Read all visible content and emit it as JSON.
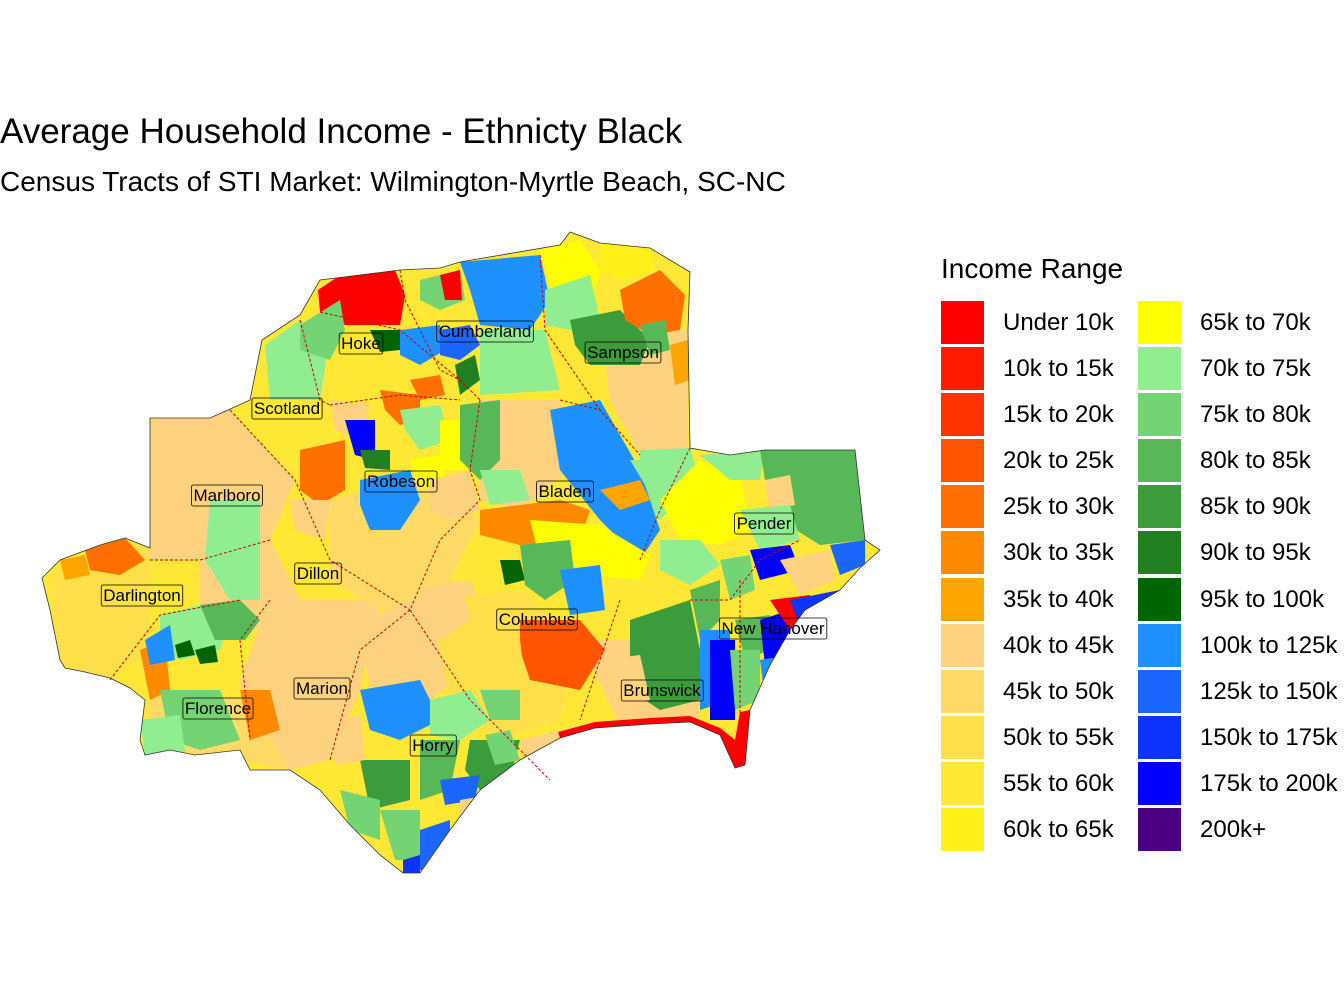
{
  "title": "Average Household Income - Ethnicty Black",
  "subtitle": "Census Tracts of STI Market: Wilmington-Myrtle Beach, SC-NC",
  "legend": {
    "title": "Income Range",
    "items": [
      {
        "label": "Under 10k",
        "color": "#ff0000"
      },
      {
        "label": "10k to 15k",
        "color": "#ff1a00"
      },
      {
        "label": "15k to 20k",
        "color": "#ff3300"
      },
      {
        "label": "20k to 25k",
        "color": "#ff5500"
      },
      {
        "label": "25k to 30k",
        "color": "#ff7000"
      },
      {
        "label": "30k to 35k",
        "color": "#ff8a00"
      },
      {
        "label": "35k to 40k",
        "color": "#ffa500"
      },
      {
        "label": "40k to 45k",
        "color": "#ffd27f"
      },
      {
        "label": "45k to 50k",
        "color": "#ffda66"
      },
      {
        "label": "50k to 55k",
        "color": "#ffe04a"
      },
      {
        "label": "55k to 60k",
        "color": "#ffe835"
      },
      {
        "label": "60k to 65k",
        "color": "#fff01a"
      },
      {
        "label": "65k to 70k",
        "color": "#ffff00"
      },
      {
        "label": "70k to 75k",
        "color": "#90ee90"
      },
      {
        "label": "75k to 80k",
        "color": "#74d474"
      },
      {
        "label": "80k to 85k",
        "color": "#58b858"
      },
      {
        "label": "85k to 90k",
        "color": "#3c9c3c"
      },
      {
        "label": "90k to 95k",
        "color": "#208020"
      },
      {
        "label": "95k to 100k",
        "color": "#006400"
      },
      {
        "label": "100k to 125k",
        "color": "#1e90ff"
      },
      {
        "label": "125k to 150k",
        "color": "#1a66ff"
      },
      {
        "label": "150k to 175k",
        "color": "#0d33ff"
      },
      {
        "label": "175k to 200k",
        "color": "#0000ff"
      },
      {
        "label": "200k+",
        "color": "#4b0082"
      }
    ]
  },
  "counties": [
    {
      "name": "Hoke"
    },
    {
      "name": "Cumberland"
    },
    {
      "name": "Sampson"
    },
    {
      "name": "Scotland"
    },
    {
      "name": "Robeson"
    },
    {
      "name": "Bladen"
    },
    {
      "name": "Marlboro"
    },
    {
      "name": "Pender"
    },
    {
      "name": "Dillon"
    },
    {
      "name": "Darlington"
    },
    {
      "name": "Columbus"
    },
    {
      "name": "New Hanover"
    },
    {
      "name": "Marion"
    },
    {
      "name": "Brunswick"
    },
    {
      "name": "Florence"
    },
    {
      "name": "Horry"
    }
  ]
}
